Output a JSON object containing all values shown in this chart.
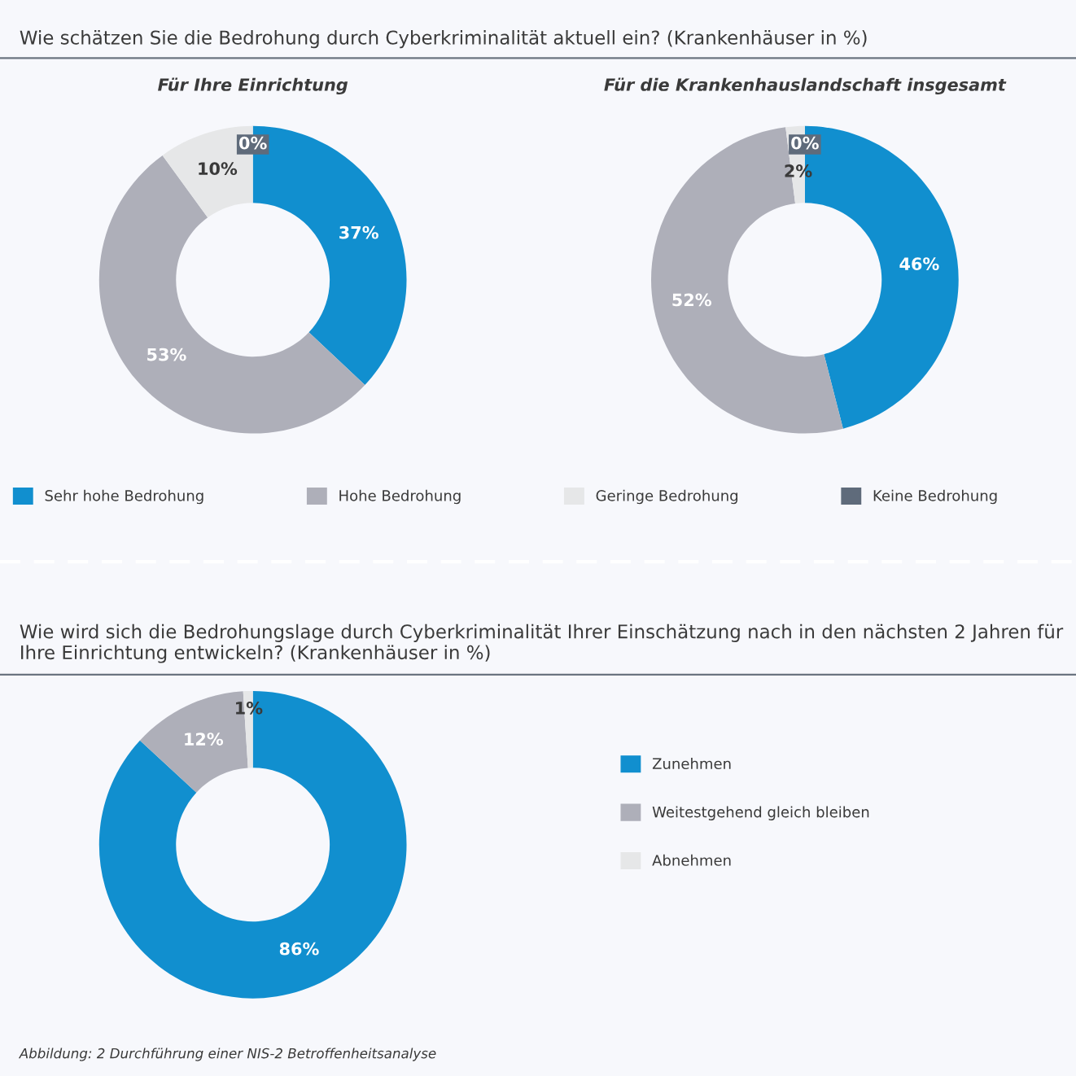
{
  "chart_data": [
    {
      "type": "donut",
      "title": "Wie schätzen Sie die Bedrohung durch Cyberkriminalität aktuell ein? (Krankenhäuser in %)",
      "subtitle": "Für Ihre Einrichtung",
      "categories": [
        "Sehr hohe Bedrohung",
        "Hohe Bedrohung",
        "Geringe Bedrohung",
        "Keine Bedrohung"
      ],
      "values": [
        37,
        53,
        10,
        0
      ],
      "value_labels": [
        "37%",
        "53%",
        "10%",
        "0%"
      ],
      "colors": [
        "#118fcf",
        "#aeafb9",
        "#e6e7e8",
        "#5f6b7b"
      ],
      "legend": "bottom"
    },
    {
      "type": "donut",
      "subtitle": "Für die Krankenhauslandschaft insgesamt",
      "categories": [
        null,
        null,
        null,
        null
      ],
      "values": [
        46,
        52,
        2,
        0
      ],
      "value_labels": [
        "46%",
        "52%",
        "2%",
        "0%"
      ],
      "colors": [
        "#118fcf",
        "#aeafb9",
        "#e6e7e8",
        "#5f6b7b"
      ]
    },
    {
      "type": "donut",
      "title": "Wie wird sich die Bedrohungslage durch Cyberkriminalität Ihrer Einschätzung nach in den nächsten 2 Jahren für Ihre Einrichtung entwickeln? (Krankenhäuser in %)",
      "categories": [
        "Zunehmen",
        "Weitestgehend gleich bleiben",
        "Abnehmen"
      ],
      "values": [
        86,
        12,
        1
      ],
      "value_labels": [
        "86%",
        "12%",
        "1%"
      ],
      "colors": [
        "#118fcf",
        "#aeafb9",
        "#e6e7e8"
      ],
      "legend": "right",
      "annotations": [
        "Abbildung: 2 Durchführung einer NIS-2 Betroffenheitsanalyse"
      ]
    }
  ]
}
